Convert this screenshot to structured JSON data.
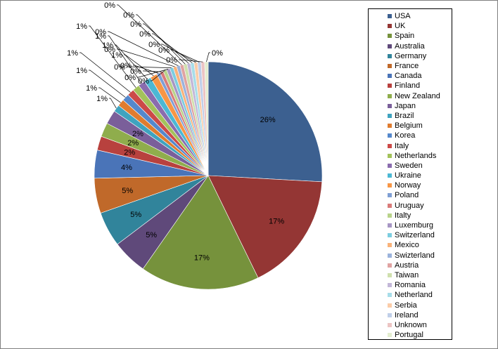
{
  "chart_data": {
    "type": "pie",
    "title": "",
    "legend_position": "right",
    "slices": [
      {
        "label": "USA",
        "value": 26,
        "display": "26%",
        "color": "#3c6090"
      },
      {
        "label": "UK",
        "value": 17,
        "display": "17%",
        "color": "#943634"
      },
      {
        "label": "Spain",
        "value": 17,
        "display": "17%",
        "color": "#76923c"
      },
      {
        "label": "Australia",
        "value": 5,
        "display": "5%",
        "color": "#5f497a"
      },
      {
        "label": "Germany",
        "value": 5,
        "display": "5%",
        "color": "#31849b"
      },
      {
        "label": "France",
        "value": 5,
        "display": "5%",
        "color": "#c0692a"
      },
      {
        "label": "Canada",
        "value": 4,
        "display": "4%",
        "color": "#4a74b8"
      },
      {
        "label": "Finland",
        "value": 2,
        "display": "2%",
        "color": "#b8413e"
      },
      {
        "label": "New Zealand",
        "value": 2,
        "display": "2%",
        "color": "#8fad4c"
      },
      {
        "label": "Japan",
        "value": 2,
        "display": "2%",
        "color": "#7a5f9a"
      },
      {
        "label": "Brazil",
        "value": 1,
        "display": "1%",
        "color": "#3fa3bf"
      },
      {
        "label": "Belgium",
        "value": 1,
        "display": "1%",
        "color": "#e07c2f"
      },
      {
        "label": "Korea",
        "value": 1,
        "display": "1%",
        "color": "#5588cc"
      },
      {
        "label": "Italy",
        "value": 1,
        "display": "1%",
        "color": "#cc4a48"
      },
      {
        "label": "Netherlands",
        "value": 1,
        "display": "1%",
        "color": "#a3c25a"
      },
      {
        "label": "Sweden",
        "value": 1,
        "display": "1%",
        "color": "#8a6cae"
      },
      {
        "label": "Ukraine",
        "value": 1,
        "display": "1%",
        "color": "#4cb8d4"
      },
      {
        "label": "Norway",
        "value": 1,
        "display": "1%",
        "color": "#f79646"
      },
      {
        "label": "Poland",
        "value": 0.5,
        "display": "0%",
        "color": "#7f9fd4"
      },
      {
        "label": "Uruguay",
        "value": 0.5,
        "display": "0%",
        "color": "#d97b79"
      },
      {
        "label": "Italty",
        "value": 0.5,
        "display": "0%",
        "color": "#b9d38a"
      },
      {
        "label": "Luxemburg",
        "value": 0.5,
        "display": "0%",
        "color": "#a796c4"
      },
      {
        "label": "Switzerland",
        "value": 0.5,
        "display": "0%",
        "color": "#7ccde0"
      },
      {
        "label": "Mexico",
        "value": 0.5,
        "display": "0%",
        "color": "#f9b27a"
      },
      {
        "label": "Swizterland",
        "value": 0.5,
        "display": "0%",
        "color": "#9bb3dc"
      },
      {
        "label": "Austria",
        "value": 0.5,
        "display": "0%",
        "color": "#e0a3a2"
      },
      {
        "label": "Taiwan",
        "value": 0.5,
        "display": "0%",
        "color": "#cfe0ad"
      },
      {
        "label": "Romania",
        "value": 0.5,
        "display": "0%",
        "color": "#c3b7d8"
      },
      {
        "label": "Netherland",
        "value": 0.5,
        "display": "0%",
        "color": "#a7dde9"
      },
      {
        "label": "Serbia",
        "value": 0.5,
        "display": "0%",
        "color": "#fbcca8"
      },
      {
        "label": "Ireland",
        "value": 0.5,
        "display": "0%",
        "color": "#c0cfe9"
      },
      {
        "label": "Unknown",
        "value": 0.5,
        "display": "0%",
        "color": "#ecc4c3"
      },
      {
        "label": "Portugal",
        "value": 0.5,
        "display": "0%",
        "color": "#e3edcf"
      }
    ]
  }
}
